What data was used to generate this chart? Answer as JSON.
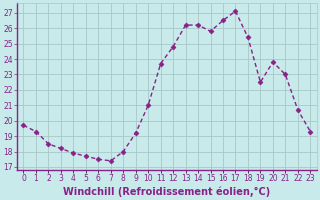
{
  "x": [
    0,
    1,
    2,
    3,
    4,
    5,
    6,
    7,
    8,
    9,
    10,
    11,
    12,
    13,
    14,
    15,
    16,
    17,
    18,
    19,
    20,
    21,
    22,
    23
  ],
  "y": [
    19.7,
    19.3,
    18.5,
    18.2,
    17.9,
    17.7,
    17.5,
    17.4,
    18.0,
    19.2,
    21.0,
    23.7,
    24.8,
    26.2,
    26.2,
    25.8,
    26.5,
    27.1,
    25.4,
    22.5,
    23.8,
    23.0,
    20.7,
    19.3
  ],
  "line_color": "#882288",
  "marker": "D",
  "markersize": 2.5,
  "linewidth": 1.0,
  "bg_color": "#c8eaea",
  "grid_color": "#a8c8c8",
  "xlabel": "Windchill (Refroidissement éolien,°C)",
  "xlabel_fontsize": 7,
  "ylabel_ticks": [
    17,
    18,
    19,
    20,
    21,
    22,
    23,
    24,
    25,
    26,
    27
  ],
  "xtick_labels": [
    "0",
    "1",
    "2",
    "3",
    "4",
    "5",
    "6",
    "7",
    "8",
    "9",
    "10",
    "11",
    "12",
    "13",
    "14",
    "15",
    "16",
    "17",
    "18",
    "19",
    "20",
    "21",
    "22",
    "23"
  ],
  "ylim": [
    16.8,
    27.6
  ],
  "xlim": [
    -0.5,
    23.5
  ],
  "tick_color": "#882288",
  "tick_fontsize": 5.5,
  "spine_color": "#882288",
  "xlabel_color": "#882288"
}
